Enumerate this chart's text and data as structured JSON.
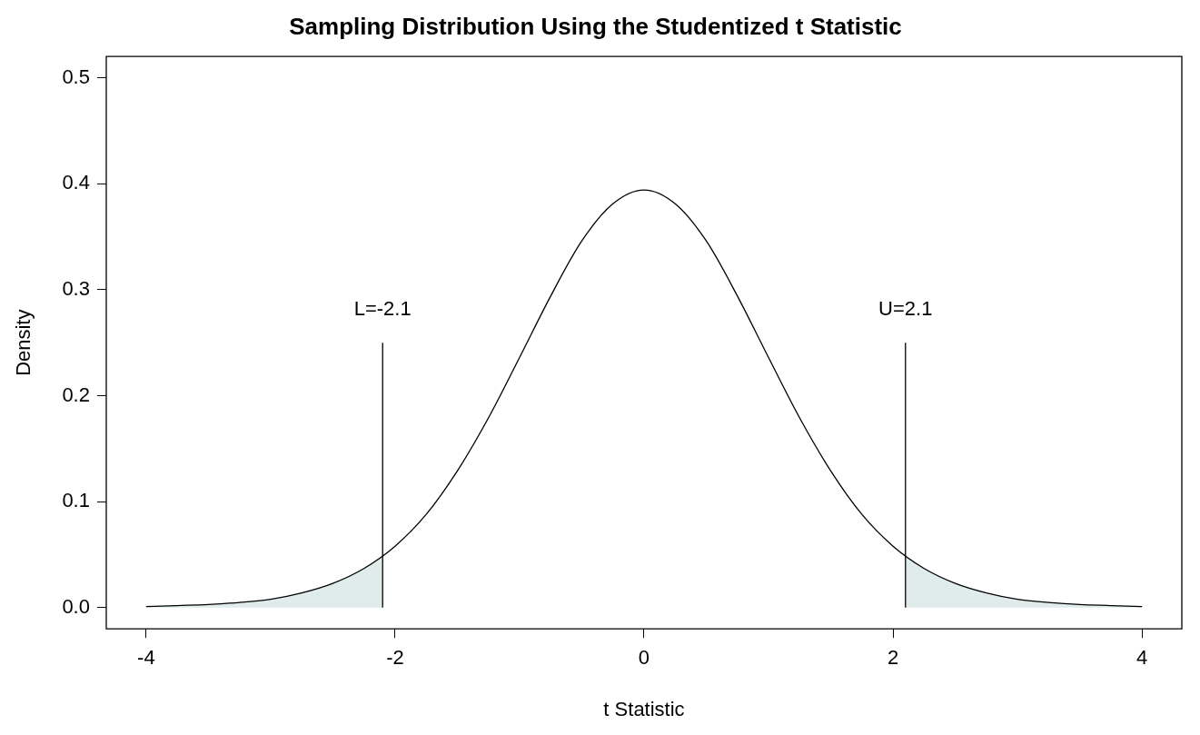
{
  "chart_data": {
    "type": "line",
    "title": "Sampling Distribution Using the Studentized t Statistic",
    "xlabel": "t Statistic",
    "ylabel": "Density",
    "xlim": [
      -4.32,
      4.32
    ],
    "xticks": [
      -4,
      -2,
      0,
      2,
      4
    ],
    "ylim": [
      -0.02,
      0.52
    ],
    "yticks": [
      {
        "value": 0,
        "label": "0.0"
      },
      {
        "value": 0.1,
        "label": "0.1"
      },
      {
        "value": 0.2,
        "label": "0.2"
      },
      {
        "value": 0.3,
        "label": "0.3"
      },
      {
        "value": 0.4,
        "label": "0.4"
      },
      {
        "value": 0.5,
        "label": "0.5"
      }
    ],
    "grid": false,
    "legend": false,
    "marker": "none",
    "line_style": "solid",
    "series": [
      {
        "type": "area",
        "color": "#e0ecec",
        "x": [
          -4,
          -3.75,
          -3.5,
          -3.25,
          -3,
          -2.75,
          -2.5,
          -2.25,
          -2.1
        ],
        "values": [
          0.001,
          0.002,
          0.003,
          0.005,
          0.008,
          0.014,
          0.023,
          0.037,
          0.049
        ]
      },
      {
        "type": "area",
        "color": "#e0ecec",
        "x": [
          2.1,
          2.25,
          2.5,
          2.75,
          3,
          3.25,
          3.5,
          3.75,
          4
        ],
        "values": [
          0.049,
          0.037,
          0.023,
          0.014,
          0.008,
          0.005,
          0.003,
          0.002,
          0.001
        ]
      },
      {
        "type": "line",
        "color": "#000000",
        "x": [
          -4,
          -3.75,
          -3.5,
          -3.25,
          -3,
          -2.75,
          -2.5,
          -2.25,
          -2,
          -1.75,
          -1.5,
          -1.25,
          -1,
          -0.75,
          -0.5,
          -0.25,
          0,
          0.25,
          0.5,
          0.75,
          1,
          1.25,
          1.5,
          1.75,
          2,
          2.25,
          2.5,
          2.75,
          3,
          3.25,
          3.5,
          3.75,
          4
        ],
        "values": [
          0.001,
          0.002,
          0.003,
          0.005,
          0.008,
          0.014,
          0.023,
          0.037,
          0.058,
          0.088,
          0.129,
          0.179,
          0.236,
          0.294,
          0.346,
          0.381,
          0.394,
          0.381,
          0.346,
          0.294,
          0.236,
          0.179,
          0.129,
          0.088,
          0.058,
          0.037,
          0.023,
          0.014,
          0.008,
          0.005,
          0.003,
          0.002,
          0.001
        ]
      },
      {
        "type": "line",
        "color": "#000000",
        "x": [
          -2.1,
          -2.1
        ],
        "values": [
          0,
          0.25
        ]
      },
      {
        "type": "line",
        "color": "#000000",
        "x": [
          2.1,
          2.1
        ],
        "values": [
          0,
          0.25
        ]
      }
    ],
    "annotations": [
      {
        "text": "L=-2.1",
        "x": -2.1,
        "y": 0.25
      },
      {
        "text": "U=2.1",
        "x": 2.1,
        "y": 0.25
      }
    ]
  }
}
